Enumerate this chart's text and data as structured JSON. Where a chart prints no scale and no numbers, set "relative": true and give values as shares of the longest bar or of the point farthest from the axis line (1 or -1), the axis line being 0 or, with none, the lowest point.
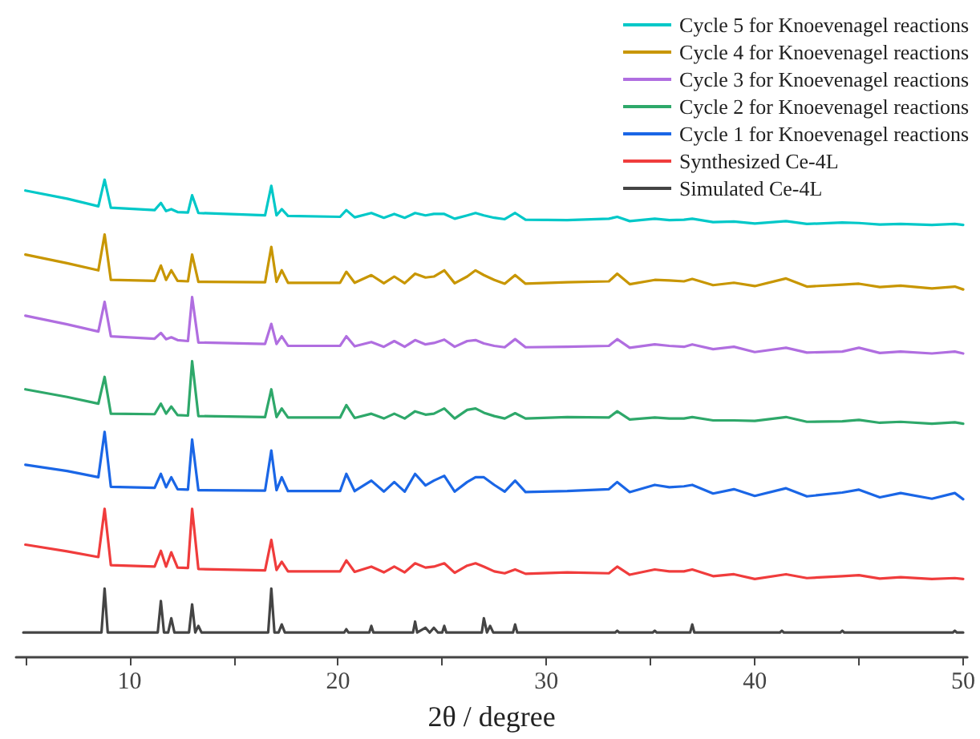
{
  "chart_data": {
    "type": "line",
    "relative": true,
    "xlabel": "2θ / degree",
    "xlim": [
      4.55,
      50.2
    ],
    "xticks": [
      {
        "value": 5,
        "label": null
      },
      10,
      {
        "value": 15,
        "label": null
      },
      20,
      {
        "value": 25,
        "label": null
      },
      30,
      {
        "value": 35,
        "label": null
      },
      40,
      {
        "value": 45,
        "label": null
      },
      50
    ],
    "grid": false,
    "legend": "top right",
    "marker": "none",
    "line_style": "solid",
    "x": [
      5,
      7,
      8.5,
      8.8,
      9.1,
      11.2,
      11.5,
      11.75,
      12.0,
      12.3,
      12.8,
      13.0,
      13.3,
      16.5,
      16.8,
      17.05,
      17.3,
      17.6,
      20.1,
      20.4,
      20.8,
      21.6,
      22.2,
      22.7,
      23.2,
      23.7,
      24.2,
      24.6,
      25.1,
      25.6,
      26.2,
      26.6,
      27.0,
      27.5,
      28.0,
      28.5,
      29,
      31,
      33,
      33.4,
      34,
      35.2,
      35.9,
      36.6,
      37.0,
      38,
      39,
      40,
      41.5,
      42.5,
      44.2,
      45,
      46,
      47,
      48.5,
      49.6,
      50
    ],
    "series": [
      {
        "name": "Cycle 5 for Knoevenagel reactions",
        "color": "#00c8c8",
        "values": [
          0.977,
          0.96,
          0.944,
          1.0,
          0.941,
          0.936,
          0.951,
          0.934,
          0.938,
          0.932,
          0.931,
          0.967,
          0.93,
          0.925,
          0.987,
          0.925,
          0.938,
          0.924,
          0.922,
          0.936,
          0.921,
          0.93,
          0.92,
          0.928,
          0.92,
          0.93,
          0.925,
          0.928,
          0.928,
          0.918,
          0.925,
          0.93,
          0.925,
          0.92,
          0.917,
          0.93,
          0.916,
          0.915,
          0.918,
          0.922,
          0.913,
          0.918,
          0.915,
          0.916,
          0.918,
          0.911,
          0.912,
          0.908,
          0.913,
          0.907,
          0.91,
          0.909,
          0.906,
          0.907,
          0.905,
          0.907,
          0.905
        ]
      },
      {
        "name": "Cycle 4 for Knoevenagel reactions",
        "color": "#c89600",
        "values": [
          0.843,
          0.825,
          0.81,
          0.885,
          0.79,
          0.788,
          0.82,
          0.79,
          0.81,
          0.788,
          0.787,
          0.843,
          0.786,
          0.785,
          0.859,
          0.786,
          0.81,
          0.784,
          0.784,
          0.807,
          0.784,
          0.8,
          0.783,
          0.797,
          0.783,
          0.803,
          0.795,
          0.797,
          0.81,
          0.783,
          0.797,
          0.81,
          0.8,
          0.79,
          0.782,
          0.8,
          0.782,
          0.785,
          0.787,
          0.803,
          0.781,
          0.79,
          0.789,
          0.787,
          0.792,
          0.779,
          0.784,
          0.777,
          0.793,
          0.776,
          0.78,
          0.782,
          0.775,
          0.778,
          0.772,
          0.776,
          0.77
        ]
      },
      {
        "name": "Cycle 3 for Knoevenagel reactions",
        "color": "#b06ee0",
        "values": [
          0.715,
          0.697,
          0.682,
          0.744,
          0.672,
          0.667,
          0.679,
          0.666,
          0.67,
          0.664,
          0.662,
          0.754,
          0.659,
          0.656,
          0.698,
          0.656,
          0.672,
          0.652,
          0.652,
          0.672,
          0.651,
          0.66,
          0.65,
          0.662,
          0.65,
          0.664,
          0.655,
          0.658,
          0.665,
          0.65,
          0.662,
          0.664,
          0.657,
          0.652,
          0.649,
          0.666,
          0.649,
          0.65,
          0.652,
          0.666,
          0.648,
          0.655,
          0.652,
          0.65,
          0.655,
          0.645,
          0.65,
          0.639,
          0.648,
          0.638,
          0.64,
          0.648,
          0.637,
          0.64,
          0.636,
          0.64,
          0.636
        ]
      },
      {
        "name": "Cycle 2 for Knoevenagel reactions",
        "color": "#2ea86a",
        "values": [
          0.561,
          0.545,
          0.531,
          0.587,
          0.51,
          0.509,
          0.531,
          0.51,
          0.525,
          0.507,
          0.506,
          0.62,
          0.505,
          0.503,
          0.561,
          0.503,
          0.521,
          0.502,
          0.502,
          0.528,
          0.501,
          0.51,
          0.5,
          0.51,
          0.5,
          0.515,
          0.508,
          0.51,
          0.521,
          0.5,
          0.518,
          0.521,
          0.512,
          0.505,
          0.5,
          0.511,
          0.5,
          0.503,
          0.502,
          0.515,
          0.498,
          0.502,
          0.5,
          0.5,
          0.503,
          0.496,
          0.496,
          0.495,
          0.503,
          0.493,
          0.494,
          0.497,
          0.491,
          0.493,
          0.489,
          0.492,
          0.489
        ]
      },
      {
        "name": "Cycle 1 for Knoevenagel reactions",
        "color": "#1a66e6",
        "values": [
          0.403,
          0.39,
          0.377,
          0.472,
          0.357,
          0.355,
          0.384,
          0.356,
          0.377,
          0.352,
          0.351,
          0.456,
          0.35,
          0.349,
          0.433,
          0.35,
          0.377,
          0.348,
          0.348,
          0.384,
          0.348,
          0.37,
          0.347,
          0.367,
          0.347,
          0.384,
          0.36,
          0.37,
          0.38,
          0.347,
          0.367,
          0.377,
          0.377,
          0.361,
          0.347,
          0.37,
          0.346,
          0.348,
          0.352,
          0.367,
          0.346,
          0.361,
          0.356,
          0.358,
          0.361,
          0.343,
          0.352,
          0.338,
          0.354,
          0.337,
          0.345,
          0.351,
          0.335,
          0.344,
          0.332,
          0.344,
          0.331
        ]
      },
      {
        "name": "Synthesized Ce-4L",
        "color": "#f03c3c",
        "values": [
          0.236,
          0.222,
          0.21,
          0.311,
          0.193,
          0.19,
          0.223,
          0.19,
          0.22,
          0.188,
          0.187,
          0.311,
          0.185,
          0.182,
          0.246,
          0.183,
          0.2,
          0.18,
          0.18,
          0.203,
          0.179,
          0.19,
          0.178,
          0.19,
          0.178,
          0.197,
          0.188,
          0.19,
          0.197,
          0.177,
          0.192,
          0.197,
          0.19,
          0.18,
          0.176,
          0.184,
          0.175,
          0.178,
          0.176,
          0.19,
          0.173,
          0.184,
          0.18,
          0.18,
          0.184,
          0.17,
          0.174,
          0.164,
          0.174,
          0.166,
          0.17,
          0.172,
          0.165,
          0.168,
          0.164,
          0.166,
          0.164
        ]
      },
      {
        "name": "Simulated Ce-4L",
        "color": "#444444",
        "x": [
          4.9,
          8.65,
          8.8,
          8.95,
          11.35,
          11.5,
          11.65,
          11.85,
          12.0,
          12.15,
          12.85,
          13.0,
          13.15,
          13.3,
          13.45,
          16.65,
          16.8,
          16.95,
          17.15,
          17.3,
          17.45,
          20.3,
          20.4,
          20.5,
          21.5,
          21.6,
          21.7,
          23.6,
          23.7,
          23.8,
          24.2,
          24.4,
          24.6,
          24.8,
          25.0,
          25.1,
          25.2,
          26.9,
          27.0,
          27.15,
          27.3,
          27.45,
          28.4,
          28.5,
          28.6,
          33.3,
          33.4,
          33.5,
          35.1,
          35.2,
          35.3,
          36.9,
          37.0,
          37.1,
          41.2,
          41.3,
          41.4,
          44.1,
          44.2,
          44.3,
          49.5,
          49.6,
          49.7,
          50.0
        ],
        "values": [
          0.052,
          0.052,
          0.144,
          0.052,
          0.052,
          0.118,
          0.052,
          0.052,
          0.082,
          0.052,
          0.052,
          0.111,
          0.052,
          0.066,
          0.052,
          0.052,
          0.144,
          0.052,
          0.052,
          0.069,
          0.052,
          0.052,
          0.059,
          0.052,
          0.052,
          0.066,
          0.052,
          0.052,
          0.075,
          0.052,
          0.062,
          0.052,
          0.062,
          0.052,
          0.052,
          0.066,
          0.052,
          0.052,
          0.082,
          0.052,
          0.066,
          0.052,
          0.052,
          0.069,
          0.052,
          0.052,
          0.056,
          0.052,
          0.052,
          0.056,
          0.052,
          0.052,
          0.069,
          0.052,
          0.052,
          0.056,
          0.052,
          0.052,
          0.056,
          0.052,
          0.052,
          0.056,
          0.052,
          0.052
        ]
      }
    ]
  }
}
